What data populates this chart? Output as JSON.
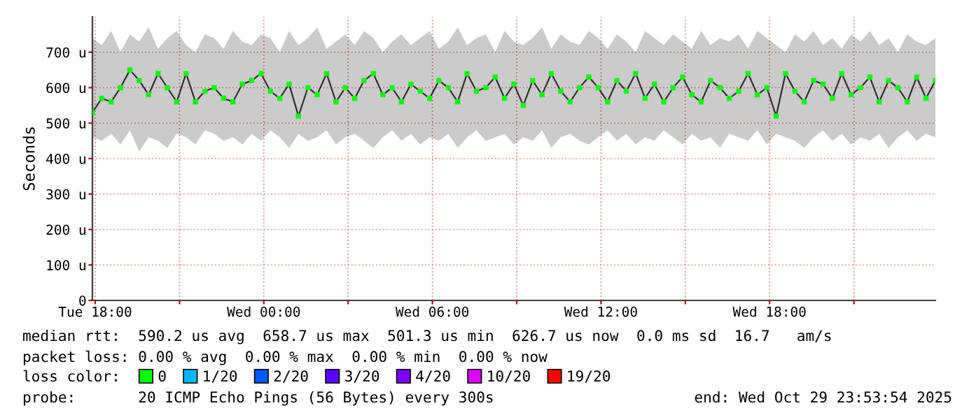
{
  "chart_data": {
    "type": "line",
    "ylabel": "Seconds",
    "legend_title": "loss color:",
    "x": [
      "2025-10-28T17:54",
      "2025-10-28T18:14",
      "2025-10-28T18:34",
      "2025-10-28T18:54",
      "2025-10-28T19:14",
      "2025-10-28T19:34",
      "2025-10-28T19:54",
      "2025-10-28T20:14",
      "2025-10-28T20:34",
      "2025-10-28T20:54",
      "2025-10-28T21:14",
      "2025-10-28T21:34",
      "2025-10-28T21:54",
      "2025-10-28T22:14",
      "2025-10-28T22:34",
      "2025-10-28T22:54",
      "2025-10-28T23:14",
      "2025-10-28T23:34",
      "2025-10-28T23:54",
      "2025-10-29T00:14",
      "2025-10-29T00:34",
      "2025-10-29T00:54",
      "2025-10-29T01:14",
      "2025-10-29T01:34",
      "2025-10-29T01:54",
      "2025-10-29T02:14",
      "2025-10-29T02:34",
      "2025-10-29T02:54",
      "2025-10-29T03:14",
      "2025-10-29T03:34",
      "2025-10-29T03:54",
      "2025-10-29T04:14",
      "2025-10-29T04:34",
      "2025-10-29T04:54",
      "2025-10-29T05:14",
      "2025-10-29T05:34",
      "2025-10-29T05:54",
      "2025-10-29T06:14",
      "2025-10-29T06:34",
      "2025-10-29T06:54",
      "2025-10-29T07:14",
      "2025-10-29T07:34",
      "2025-10-29T07:54",
      "2025-10-29T08:14",
      "2025-10-29T08:34",
      "2025-10-29T08:54",
      "2025-10-29T09:14",
      "2025-10-29T09:34",
      "2025-10-29T09:54",
      "2025-10-29T10:14",
      "2025-10-29T10:34",
      "2025-10-29T10:54",
      "2025-10-29T11:14",
      "2025-10-29T11:34",
      "2025-10-29T11:54",
      "2025-10-29T12:14",
      "2025-10-29T12:34",
      "2025-10-29T12:54",
      "2025-10-29T13:14",
      "2025-10-29T13:34",
      "2025-10-29T13:54",
      "2025-10-29T14:14",
      "2025-10-29T14:34",
      "2025-10-29T14:54",
      "2025-10-29T15:14",
      "2025-10-29T15:34",
      "2025-10-29T15:54",
      "2025-10-29T16:14",
      "2025-10-29T16:34",
      "2025-10-29T16:54",
      "2025-10-29T17:14",
      "2025-10-29T17:34",
      "2025-10-29T17:54",
      "2025-10-29T18:14",
      "2025-10-29T18:34",
      "2025-10-29T18:54",
      "2025-10-29T19:14",
      "2025-10-29T19:34",
      "2025-10-29T19:54",
      "2025-10-29T20:14",
      "2025-10-29T20:34",
      "2025-10-29T20:54",
      "2025-10-29T21:14",
      "2025-10-29T21:34",
      "2025-10-29T21:54",
      "2025-10-29T22:14",
      "2025-10-29T22:34",
      "2025-10-29T22:54",
      "2025-10-29T23:14",
      "2025-10-29T23:34",
      "2025-10-29T23:54"
    ],
    "series": [
      {
        "color": "#303030",
        "values": [
          530,
          570,
          560,
          600,
          650,
          620,
          580,
          640,
          600,
          560,
          640,
          560,
          590,
          600,
          570,
          560,
          610,
          620,
          640,
          590,
          570,
          610,
          520,
          600,
          580,
          640,
          560,
          600,
          570,
          620,
          640,
          580,
          600,
          560,
          610,
          590,
          570,
          620,
          600,
          560,
          640,
          590,
          600,
          630,
          570,
          610,
          550,
          620,
          580,
          640,
          590,
          560,
          600,
          630,
          600,
          560,
          620,
          590,
          640,
          570,
          610,
          560,
          600,
          630,
          580,
          560,
          620,
          600,
          570,
          590,
          640,
          580,
          600,
          520,
          640,
          590,
          560,
          620,
          610,
          570,
          640,
          580,
          600,
          630,
          560,
          620,
          600,
          560,
          630,
          570,
          620
        ],
        "lower": [
          460,
          450,
          470,
          440,
          480,
          420,
          460,
          450,
          430,
          470,
          460,
          440,
          480,
          470,
          450,
          460,
          440,
          470,
          450,
          480,
          460,
          430,
          470,
          450,
          460,
          480,
          440,
          460,
          470,
          450,
          430,
          460,
          480,
          450,
          470,
          440,
          460,
          450,
          470,
          430,
          460,
          480,
          450,
          460,
          470,
          440,
          460,
          450,
          480,
          430,
          460,
          470,
          450,
          440,
          460,
          480,
          450,
          470,
          440,
          460,
          450,
          480,
          460,
          440,
          470,
          450,
          460,
          430,
          470,
          460,
          450,
          480,
          440,
          470,
          460,
          450,
          430,
          460,
          480,
          450,
          470,
          440,
          460,
          450,
          470,
          430,
          460,
          480,
          450,
          470,
          460
        ],
        "upper": [
          740,
          720,
          760,
          700,
          750,
          730,
          770,
          710,
          740,
          760,
          720,
          700,
          750,
          740,
          710,
          760,
          730,
          720,
          750,
          740,
          700,
          760,
          720,
          740,
          770,
          710,
          730,
          750,
          720,
          760,
          740,
          700,
          730,
          750,
          720,
          740,
          760,
          710,
          730,
          770,
          720,
          740,
          750,
          700,
          760,
          730,
          720,
          740,
          770,
          710,
          750,
          730,
          720,
          760,
          740,
          710,
          750,
          730,
          700,
          760,
          740,
          720,
          750,
          730,
          710,
          760,
          720,
          740,
          730,
          750,
          710,
          760,
          740,
          720,
          700,
          750,
          730,
          760,
          720,
          740,
          710,
          750,
          730,
          760,
          720,
          740,
          700,
          750,
          730,
          720,
          740
        ]
      },
      {
        "type": "scatter",
        "name": "0",
        "color": "#00ff00",
        "marker": "square",
        "values": [
          530,
          570,
          560,
          600,
          650,
          620,
          580,
          640,
          600,
          560,
          640,
          560,
          590,
          600,
          570,
          560,
          610,
          620,
          640,
          590,
          570,
          610,
          520,
          600,
          580,
          640,
          560,
          600,
          570,
          620,
          640,
          580,
          600,
          560,
          610,
          590,
          570,
          620,
          600,
          560,
          640,
          590,
          600,
          630,
          570,
          610,
          550,
          620,
          580,
          640,
          590,
          560,
          600,
          630,
          600,
          560,
          620,
          590,
          640,
          570,
          610,
          560,
          600,
          630,
          580,
          560,
          620,
          600,
          570,
          590,
          640,
          580,
          600,
          520,
          640,
          590,
          560,
          620,
          610,
          570,
          640,
          580,
          600,
          630,
          560,
          620,
          600,
          560,
          630,
          570,
          620
        ]
      },
      {
        "type": "scatter",
        "name": "1/20",
        "color": "#00b8ff",
        "marker": "square",
        "values": [
          null,
          null,
          null,
          null,
          null,
          null,
          null,
          null,
          null,
          null,
          null,
          null,
          null,
          null,
          null,
          null,
          null,
          null,
          null,
          null,
          null,
          null,
          null,
          null,
          null,
          null,
          null,
          null,
          null,
          null,
          null,
          null,
          null,
          null,
          null,
          null,
          null,
          null,
          null,
          null,
          null,
          null,
          null,
          null,
          null,
          null,
          null,
          null,
          null,
          null,
          null,
          null,
          null,
          null,
          null,
          null,
          null,
          null,
          null,
          null,
          null,
          null,
          null,
          null,
          null,
          null,
          null,
          null,
          null,
          null,
          null,
          null,
          null,
          null,
          null,
          null,
          null,
          null,
          null,
          null,
          null,
          null,
          null,
          null,
          null,
          null,
          null,
          null,
          null,
          null,
          null
        ]
      },
      {
        "type": "scatter",
        "name": "2/20",
        "color": "#0059ff",
        "marker": "square",
        "values": [
          null,
          null,
          null,
          null,
          null,
          null,
          null,
          null,
          null,
          null,
          null,
          null,
          null,
          null,
          null,
          null,
          null,
          null,
          null,
          null,
          null,
          null,
          null,
          null,
          null,
          null,
          null,
          null,
          null,
          null,
          null,
          null,
          null,
          null,
          null,
          null,
          null,
          null,
          null,
          null,
          null,
          null,
          null,
          null,
          null,
          null,
          null,
          null,
          null,
          null,
          null,
          null,
          null,
          null,
          null,
          null,
          null,
          null,
          null,
          null,
          null,
          null,
          null,
          null,
          null,
          null,
          null,
          null,
          null,
          null,
          null,
          null,
          null,
          null,
          null,
          null,
          null,
          null,
          null,
          null,
          null,
          null,
          null,
          null,
          null,
          null,
          null,
          null,
          null,
          null,
          null
        ]
      },
      {
        "type": "scatter",
        "name": "3/20",
        "color": "#5e00ff",
        "marker": "square",
        "values": [
          null,
          null,
          null,
          null,
          null,
          null,
          null,
          null,
          null,
          null,
          null,
          null,
          null,
          null,
          null,
          null,
          null,
          null,
          null,
          null,
          null,
          null,
          null,
          null,
          null,
          null,
          null,
          null,
          null,
          null,
          null,
          null,
          null,
          null,
          null,
          null,
          null,
          null,
          null,
          null,
          null,
          null,
          null,
          null,
          null,
          null,
          null,
          null,
          null,
          null,
          null,
          null,
          null,
          null,
          null,
          null,
          null,
          null,
          null,
          null,
          null,
          null,
          null,
          null,
          null,
          null,
          null,
          null,
          null,
          null,
          null,
          null,
          null,
          null,
          null,
          null,
          null,
          null,
          null,
          null,
          null,
          null,
          null,
          null,
          null,
          null,
          null,
          null,
          null,
          null,
          null
        ]
      },
      {
        "type": "scatter",
        "name": "4/20",
        "color": "#7e00ff",
        "marker": "square",
        "values": [
          null,
          null,
          null,
          null,
          null,
          null,
          null,
          null,
          null,
          null,
          null,
          null,
          null,
          null,
          null,
          null,
          null,
          null,
          null,
          null,
          null,
          null,
          null,
          null,
          null,
          null,
          null,
          null,
          null,
          null,
          null,
          null,
          null,
          null,
          null,
          null,
          null,
          null,
          null,
          null,
          null,
          null,
          null,
          null,
          null,
          null,
          null,
          null,
          null,
          null,
          null,
          null,
          null,
          null,
          null,
          null,
          null,
          null,
          null,
          null,
          null,
          null,
          null,
          null,
          null,
          null,
          null,
          null,
          null,
          null,
          null,
          null,
          null,
          null,
          null,
          null,
          null,
          null,
          null,
          null,
          null,
          null,
          null,
          null,
          null,
          null,
          null,
          null,
          null,
          null,
          null
        ]
      },
      {
        "type": "scatter",
        "name": "10/20",
        "color": "#dd00ff",
        "marker": "square",
        "values": [
          null,
          null,
          null,
          null,
          null,
          null,
          null,
          null,
          null,
          null,
          null,
          null,
          null,
          null,
          null,
          null,
          null,
          null,
          null,
          null,
          null,
          null,
          null,
          null,
          null,
          null,
          null,
          null,
          null,
          null,
          null,
          null,
          null,
          null,
          null,
          null,
          null,
          null,
          null,
          null,
          null,
          null,
          null,
          null,
          null,
          null,
          null,
          null,
          null,
          null,
          null,
          null,
          null,
          null,
          null,
          null,
          null,
          null,
          null,
          null,
          null,
          null,
          null,
          null,
          null,
          null,
          null,
          null,
          null,
          null,
          null,
          null,
          null,
          null,
          null,
          null,
          null,
          null,
          null,
          null,
          null,
          null,
          null,
          null,
          null,
          null,
          null,
          null,
          null,
          null,
          null
        ]
      },
      {
        "type": "scatter",
        "name": "19/20",
        "color": "#ff0000",
        "marker": "square",
        "values": [
          null,
          null,
          null,
          null,
          null,
          null,
          null,
          null,
          null,
          null,
          null,
          null,
          null,
          null,
          null,
          null,
          null,
          null,
          null,
          null,
          null,
          null,
          null,
          null,
          null,
          null,
          null,
          null,
          null,
          null,
          null,
          null,
          null,
          null,
          null,
          null,
          null,
          null,
          null,
          null,
          null,
          null,
          null,
          null,
          null,
          null,
          null,
          null,
          null,
          null,
          null,
          null,
          null,
          null,
          null,
          null,
          null,
          null,
          null,
          null,
          null,
          null,
          null,
          null,
          null,
          null,
          null,
          null,
          null,
          null,
          null,
          null,
          null,
          null,
          null,
          null,
          null,
          null,
          null,
          null,
          null,
          null,
          null,
          null,
          null,
          null,
          null,
          null,
          null,
          null,
          null
        ]
      }
    ],
    "xlim": [
      "2025-10-28T17:54",
      "2025-10-29T23:54"
    ],
    "xticks": [
      {
        "value": "2025-10-28T18:00",
        "label": "Tue 18:00"
      },
      {
        "value": "2025-10-28T21:00",
        "label": null
      },
      {
        "value": "2025-10-29T00:00",
        "label": "Wed 00:00"
      },
      {
        "value": "2025-10-29T03:00",
        "label": null
      },
      {
        "value": "2025-10-29T06:00",
        "label": "Wed 06:00"
      },
      {
        "value": "2025-10-29T09:00",
        "label": null
      },
      {
        "value": "2025-10-29T12:00",
        "label": "Wed 12:00"
      },
      {
        "value": "2025-10-29T15:00",
        "label": null
      },
      {
        "value": "2025-10-29T18:00",
        "label": "Wed 18:00"
      },
      {
        "value": "2025-10-29T21:00",
        "label": null
      }
    ],
    "ylim": [
      0,
      800
    ],
    "yticks": [
      0,
      {
        "value": 100,
        "label": "100 u"
      },
      {
        "value": 200,
        "label": "200 u"
      },
      {
        "value": 300,
        "label": "300 u"
      },
      {
        "value": 400,
        "label": "400 u"
      },
      {
        "value": 500,
        "label": "500 u"
      },
      {
        "value": 600,
        "label": "600 u"
      },
      {
        "value": 700,
        "label": "700 u"
      }
    ],
    "grid": true,
    "legend": "bottom",
    "annotations": [
      "median rtt:  590.2 us avg  658.7 us max  501.3 us min  626.7 us now  0.0 ms sd  16.7   am/s",
      "packet loss: 0.00 % avg  0.00 % max  0.00 % min  0.00 % now",
      "probe:       20 ICMP Echo Pings (56 Bytes) every 300s",
      "end: Wed Oct 29 23:53:54 2025"
    ]
  }
}
